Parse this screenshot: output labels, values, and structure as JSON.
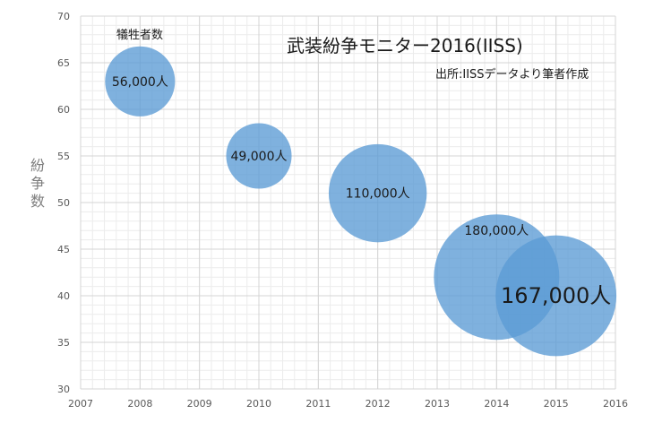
{
  "chart_data": {
    "type": "scatter",
    "title": "武装紛争モニター2016(IISS)",
    "subtitle": "出所:IISSデータより筆者作成",
    "size_legend": "犠牲者数",
    "ylabel": "紛争数",
    "xlim": [
      2007,
      2016
    ],
    "ylim": [
      30,
      70
    ],
    "x_ticks": [
      "2007",
      "2008",
      "2009",
      "2010",
      "2011",
      "2012",
      "2013",
      "2014",
      "2015",
      "2016"
    ],
    "y_ticks": [
      "30",
      "35",
      "40",
      "45",
      "50",
      "55",
      "60",
      "65",
      "70"
    ],
    "grid": true,
    "bubble_color": "#5b9bd5",
    "points": [
      {
        "x": 2008,
        "y": 63,
        "size": 56000,
        "label": "56,000人"
      },
      {
        "x": 2010,
        "y": 55,
        "size": 49000,
        "label": "49,000人"
      },
      {
        "x": 2012,
        "y": 51,
        "size": 110000,
        "label": "110,000人"
      },
      {
        "x": 2014,
        "y": 42,
        "size": 180000,
        "label": "180,000人"
      },
      {
        "x": 2015,
        "y": 40,
        "size": 167000,
        "label": "167,000人"
      }
    ]
  }
}
